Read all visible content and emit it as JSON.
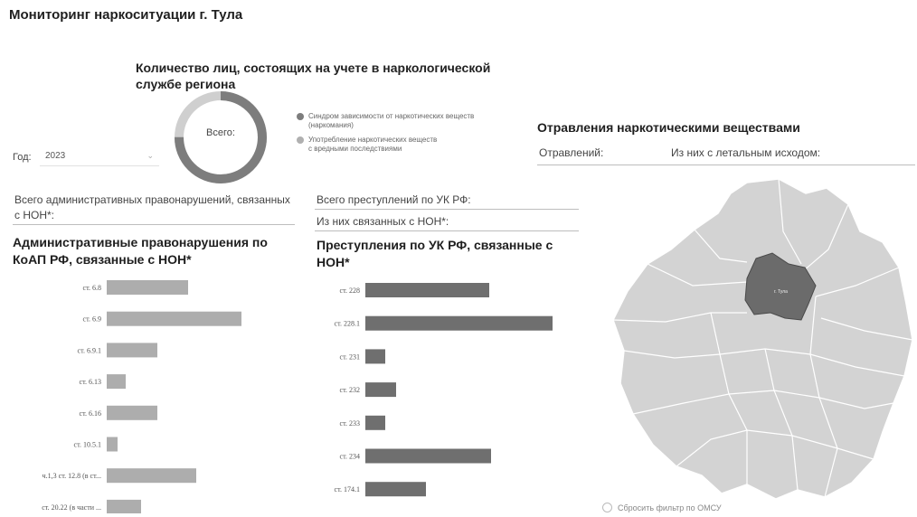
{
  "header": {
    "title": "Мониторинг наркоситуации г. Тула"
  },
  "registry": {
    "title": "Количество лиц, состоящих на учете в наркологической службе региона",
    "center_label": "Всего:",
    "legend": [
      {
        "text": "Синдром зависимости от наркотических веществ\n(наркомания)",
        "color": "#7d7d7d"
      },
      {
        "text": "Употребление наркотических веществ\nс вредными последствиями",
        "color": "#b0b0b0"
      }
    ]
  },
  "filter": {
    "label": "Год:",
    "value": "2023"
  },
  "poisoning": {
    "title": "Отравления наркотическими веществами",
    "total_label": "Отравлений:",
    "lethal_label": "Из них с летальным исходом:"
  },
  "admin": {
    "total_label": "Всего административных правонарушений, связанных с НОН*:",
    "title": "Административные правонарушения по КоАП РФ, связанные с НОН*"
  },
  "crimes": {
    "total_label": "Всего преступлений по УК РФ:",
    "related_label": "Из них связанных с НОН*:",
    "title": "Преступления по УК РФ, связанные с НОН*"
  },
  "colors": {
    "admin_bar": "#adadad",
    "crime_bar": "#6f6f6f",
    "map_fill": "#d3d3d3",
    "map_highlight": "#6b6b6b"
  },
  "map": {
    "city_label": "г. Тула",
    "reset_label": "Сбросить фильтр по ОМСУ"
  },
  "chart_data": [
    {
      "type": "bar",
      "orientation": "horizontal",
      "title": "Административные правонарушения по КоАП РФ, связанные с НОН*",
      "categories": [
        "ст. 6.8",
        "ст. 6.9",
        "ст. 6.9.1",
        "ст. 6.13",
        "ст. 6.16",
        "ст. 10.5.1",
        "ч.1,3 ст. 12.8 (в ст...",
        "ст. 20.22 (в части ..."
      ],
      "values": [
        90,
        149,
        56,
        21,
        56,
        12,
        99,
        38
      ]
    },
    {
      "type": "bar",
      "orientation": "horizontal",
      "title": "Преступления по УК РФ, связанные с НОН*",
      "categories": [
        "ст. 228",
        "ст. 228.1",
        "ст. 231",
        "ст. 232",
        "ст. 233",
        "ст. 234",
        "ст. 174.1"
      ],
      "values": [
        137,
        207,
        22,
        34,
        22,
        139,
        67
      ]
    }
  ]
}
